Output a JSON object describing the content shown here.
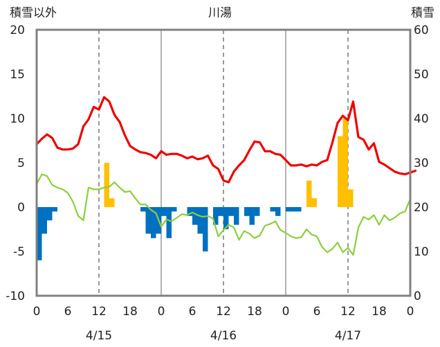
{
  "chart_data": {
    "type": "line",
    "title": "川湯",
    "ylabel_left": "積雪以外",
    "ylabel_right": "積雪",
    "ylim_left": [
      -10,
      20
    ],
    "ylim_right": [
      0,
      60
    ],
    "yticks_left": [
      "20",
      "15",
      "10",
      "5",
      "0",
      "-5",
      "-10"
    ],
    "yticks_right": [
      "60",
      "50",
      "40",
      "30",
      "20",
      "10",
      "0"
    ],
    "x_hour_labels": [
      "0",
      "6",
      "12",
      "18",
      "0",
      "6",
      "12",
      "18",
      "0",
      "6",
      "12",
      "18",
      "0"
    ],
    "date_labels": [
      "4/15",
      "4/16",
      "4/17"
    ],
    "xlim_hours": [
      0,
      72
    ],
    "grid": "vertical dashed at 12h, solid at day boundaries",
    "colors": {
      "temperature": "#ee0000",
      "secondary": "#8cce3c",
      "positive_bars": "#ffc000",
      "negative_bars": "#0070c0",
      "snow_depth": "#7030a0",
      "frame": "#808080"
    },
    "series": [
      {
        "key": "temperature",
        "values": [
          7.1,
          7.7,
          8.2,
          7.8,
          6.7,
          6.5,
          6.5,
          6.6,
          7.1,
          9.1,
          9.9,
          11.3,
          11.0,
          12.4,
          11.9,
          10.4,
          9.6,
          8.1,
          6.9,
          6.5,
          6.2,
          6.1,
          5.9,
          5.5,
          6.3,
          5.9,
          6.0,
          6.0,
          5.8,
          5.5,
          5.7,
          5.4,
          5.5,
          5.8,
          4.7,
          4.3,
          3.0,
          2.8,
          4.0,
          4.7,
          5.3,
          6.4,
          7.4,
          7.3,
          6.3,
          6.3,
          6.0,
          5.9,
          5.3,
          4.7,
          4.7,
          4.8,
          4.6,
          4.8,
          4.7,
          5.1,
          5.3,
          7.3,
          9.5,
          10.3,
          9.8,
          11.9,
          7.9,
          7.6,
          6.5,
          7.2,
          5.1,
          4.8,
          4.4,
          4.0,
          3.8,
          3.7,
          3.9,
          4.1
        ]
      },
      {
        "key": "secondary",
        "values": [
          2.6,
          3.7,
          3.5,
          2.5,
          2.2,
          2.0,
          1.6,
          0.6,
          -1.0,
          -1.5,
          2.2,
          2.0,
          2.0,
          2.2,
          2.3,
          2.8,
          2.2,
          1.7,
          1.8,
          1.0,
          0.3,
          0.3,
          -0.3,
          -0.7,
          -2.2,
          -1.4,
          -1.6,
          -1.2,
          -0.8,
          -0.9,
          -0.6,
          -0.9,
          -1.1,
          -1.0,
          -1.3,
          -3.3,
          -2.6,
          -2.0,
          -2.3,
          -3.7,
          -2.7,
          -3.0,
          -3.5,
          -3.2,
          -2.1,
          -1.9,
          -1.6,
          -2.6,
          -2.9,
          -3.3,
          -3.5,
          -3.4,
          -2.5,
          -3.1,
          -3.3,
          -4.5,
          -5.1,
          -4.7,
          -4.0,
          -5.1,
          -4.6,
          -5.4,
          -2.3,
          -1.1,
          -1.4,
          -0.9,
          -2.0,
          -0.9,
          -1.5,
          -1.2,
          -0.7,
          -0.5,
          0.9
        ]
      },
      {
        "key": "positive_bars",
        "bars": [
          {
            "hour": 13,
            "value": 5.0
          },
          {
            "hour": 14,
            "value": 1.0
          },
          {
            "hour": 52,
            "value": 3.0
          },
          {
            "hour": 53,
            "value": 1.0
          },
          {
            "hour": 58,
            "value": 8.0
          },
          {
            "hour": 59,
            "value": 10.0
          },
          {
            "hour": 60,
            "value": 2.0
          }
        ]
      },
      {
        "key": "negative_bars",
        "bars": [
          {
            "hour": 0,
            "value": -6.0
          },
          {
            "hour": 1,
            "value": -3.0
          },
          {
            "hour": 2,
            "value": -1.5
          },
          {
            "hour": 3,
            "value": -0.5
          },
          {
            "hour": 20,
            "value": -0.5
          },
          {
            "hour": 21,
            "value": -3.0
          },
          {
            "hour": 22,
            "value": -3.5
          },
          {
            "hour": 23,
            "value": -3.0
          },
          {
            "hour": 24,
            "value": -1.0
          },
          {
            "hour": 25,
            "value": -3.5
          },
          {
            "hour": 26,
            "value": -0.5
          },
          {
            "hour": 29,
            "value": -1.0
          },
          {
            "hour": 30,
            "value": -2.0
          },
          {
            "hour": 31,
            "value": -3.0
          },
          {
            "hour": 32,
            "value": -5.0
          },
          {
            "hour": 34,
            "value": -2.0
          },
          {
            "hour": 35,
            "value": -1.0
          },
          {
            "hour": 36,
            "value": -2.5
          },
          {
            "hour": 37,
            "value": -1.0
          },
          {
            "hour": 38,
            "value": -2.0
          },
          {
            "hour": 40,
            "value": -1.0
          },
          {
            "hour": 41,
            "value": -2.0
          },
          {
            "hour": 42,
            "value": -1.0
          },
          {
            "hour": 45,
            "value": -0.5
          },
          {
            "hour": 46,
            "value": -1.0
          },
          {
            "hour": 48,
            "value": -0.5
          },
          {
            "hour": 49,
            "value": -0.5
          },
          {
            "hour": 50,
            "value": -0.5
          }
        ]
      },
      {
        "key": "snow_depth",
        "axis": "right",
        "values_constant": 0
      }
    ]
  }
}
